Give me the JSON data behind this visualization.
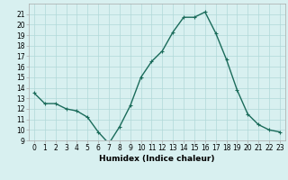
{
  "x": [
    0,
    1,
    2,
    3,
    4,
    5,
    6,
    7,
    8,
    9,
    10,
    11,
    12,
    13,
    14,
    15,
    16,
    17,
    18,
    19,
    20,
    21,
    22,
    23
  ],
  "y": [
    13.5,
    12.5,
    12.5,
    12.0,
    11.8,
    11.2,
    9.8,
    8.7,
    10.3,
    12.3,
    15.0,
    16.5,
    17.5,
    19.3,
    20.7,
    20.7,
    21.2,
    19.2,
    16.7,
    13.8,
    11.5,
    10.5,
    10.0,
    9.8
  ],
  "line_color": "#1a6b5a",
  "marker": "+",
  "marker_size": 3,
  "bg_color": "#d8f0f0",
  "grid_color": "#b0d8d8",
  "xlabel": "Humidex (Indice chaleur)",
  "ylim": [
    9,
    22
  ],
  "xlim": [
    -0.5,
    23.5
  ],
  "yticks": [
    9,
    10,
    11,
    12,
    13,
    14,
    15,
    16,
    17,
    18,
    19,
    20,
    21
  ],
  "xticks": [
    0,
    1,
    2,
    3,
    4,
    5,
    6,
    7,
    8,
    9,
    10,
    11,
    12,
    13,
    14,
    15,
    16,
    17,
    18,
    19,
    20,
    21,
    22,
    23
  ],
  "xtick_labels": [
    "0",
    "1",
    "2",
    "3",
    "4",
    "5",
    "6",
    "7",
    "8",
    "9",
    "10",
    "11",
    "12",
    "13",
    "14",
    "15",
    "16",
    "17",
    "18",
    "19",
    "20",
    "21",
    "22",
    "23"
  ],
  "tick_fontsize": 5.5,
  "xlabel_fontsize": 6.5,
  "line_width": 1.0,
  "marker_edge_width": 0.8
}
